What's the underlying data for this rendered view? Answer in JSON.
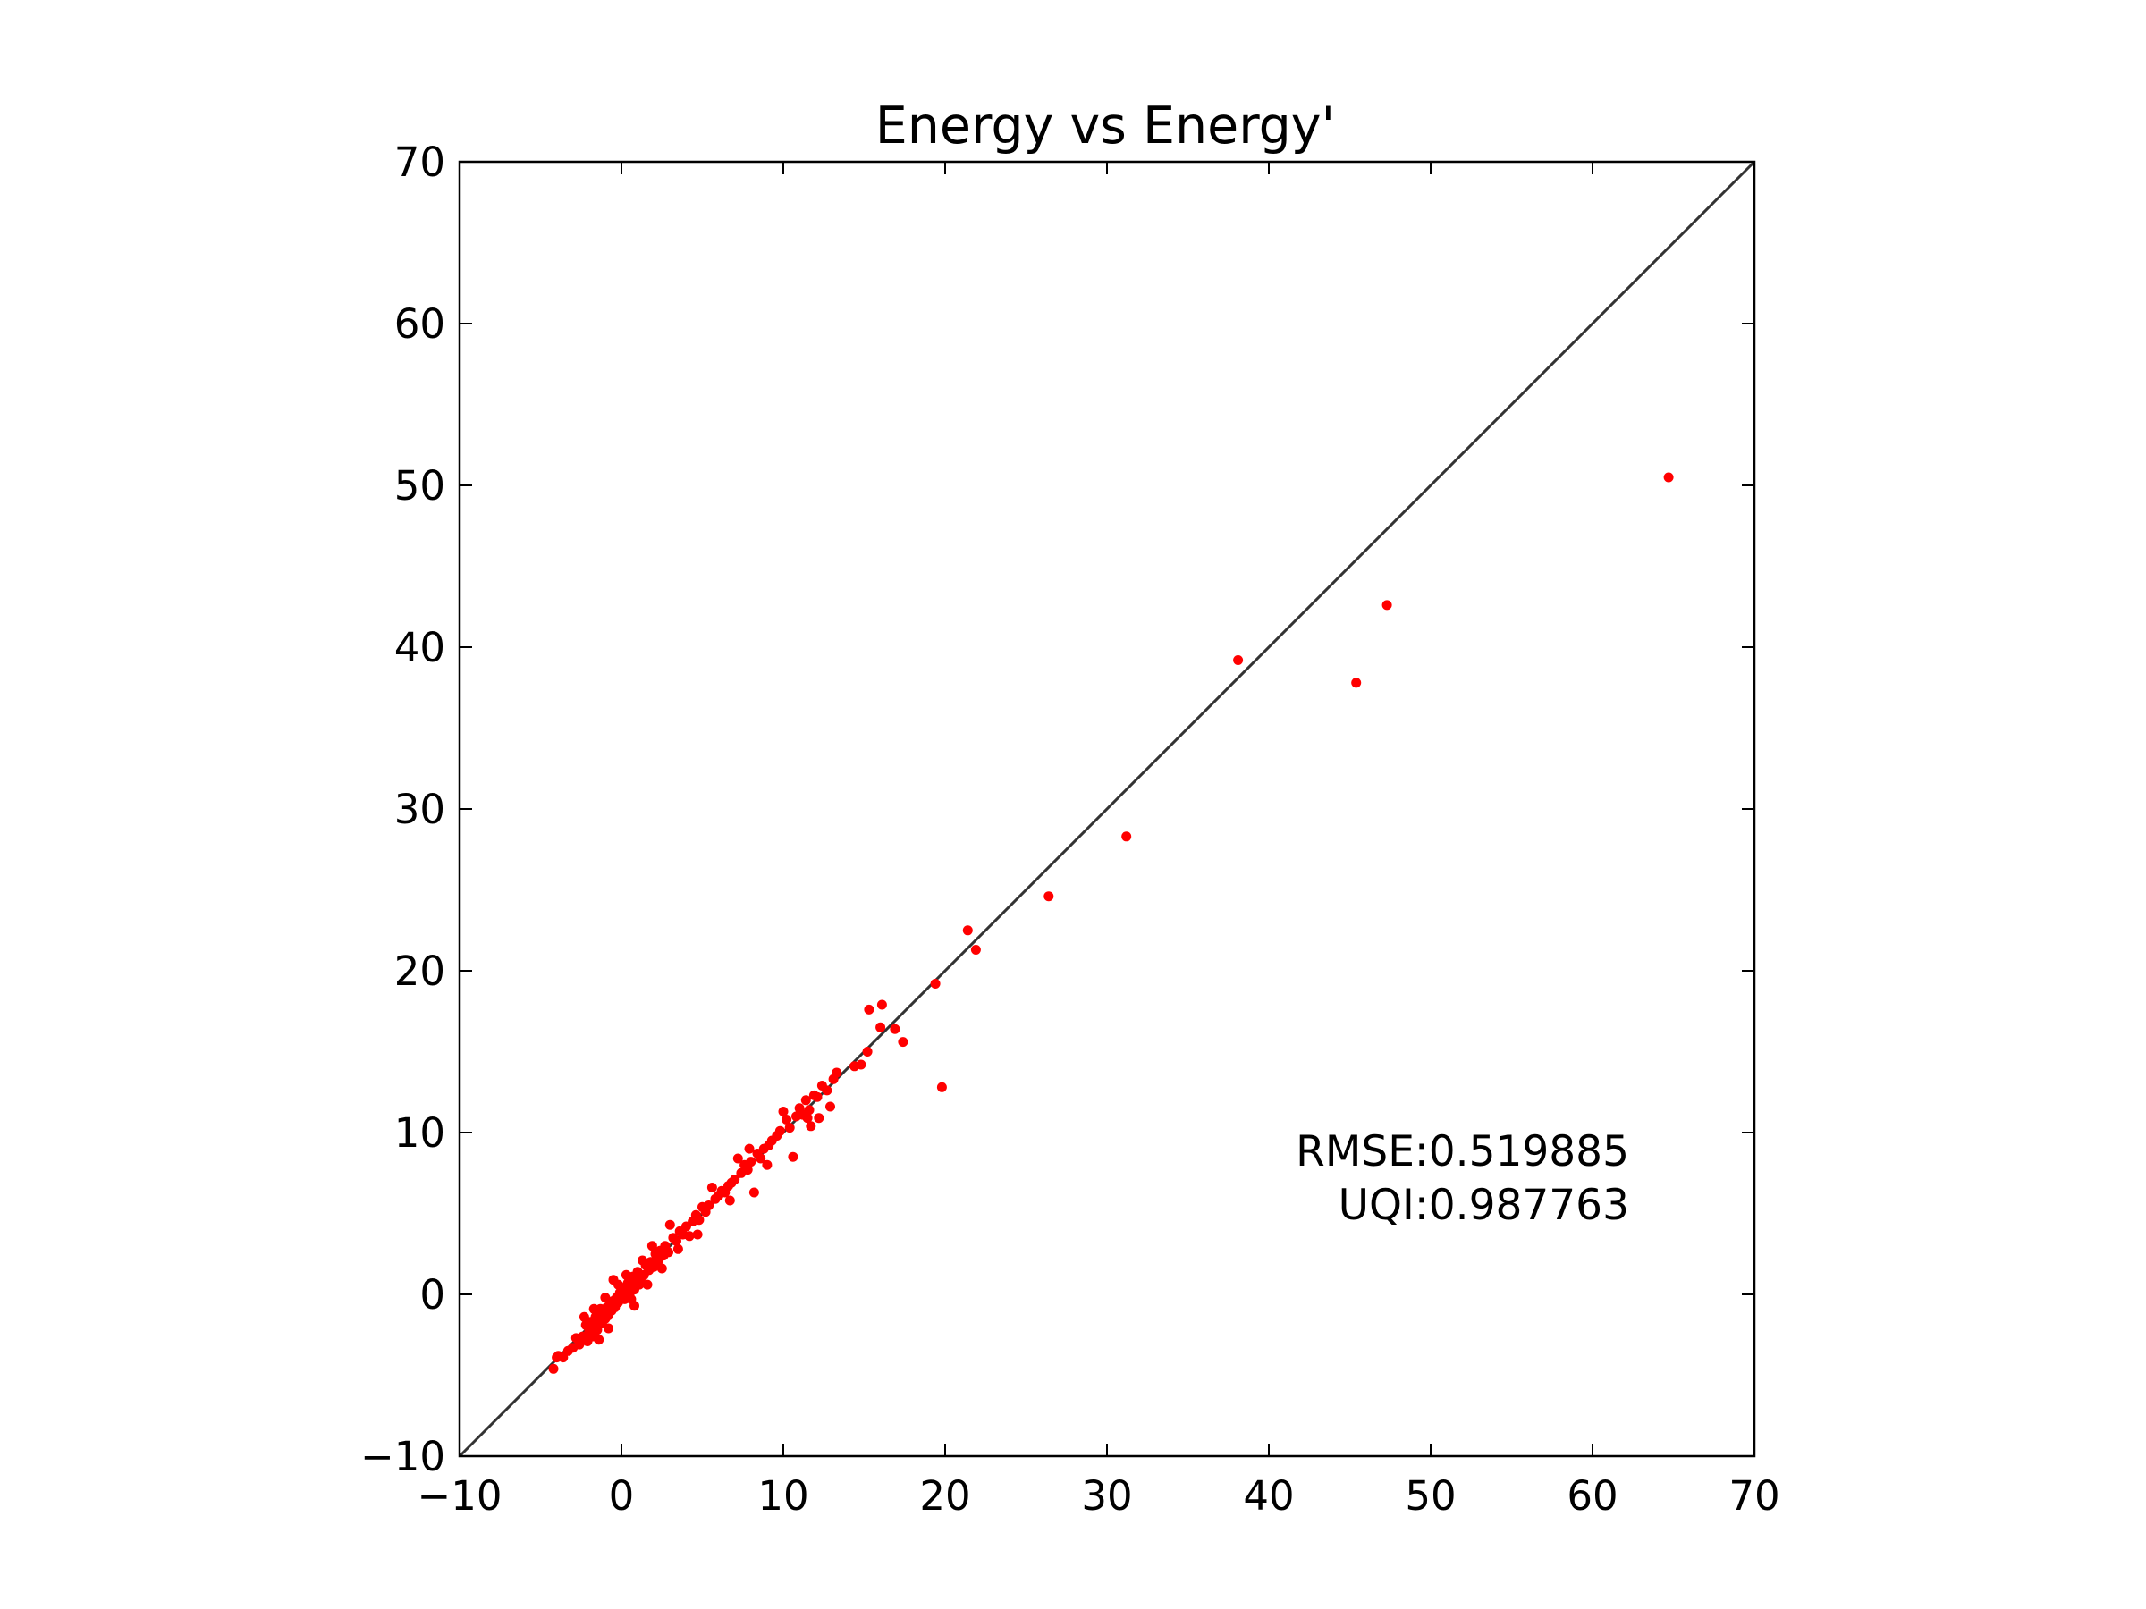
{
  "chart_data": {
    "type": "scatter",
    "title": "Energy vs Energy'",
    "xlabel": "",
    "ylabel": "",
    "xlim": [
      -10,
      70
    ],
    "ylim": [
      -10,
      70
    ],
    "x_ticks": [
      "−10",
      "0",
      "10",
      "20",
      "30",
      "40",
      "50",
      "60",
      "70"
    ],
    "y_ticks": [
      "−10",
      "0",
      "10",
      "20",
      "30",
      "40",
      "50",
      "60",
      "70"
    ],
    "x_tick_values": [
      -10,
      0,
      10,
      20,
      30,
      40,
      50,
      60,
      70
    ],
    "y_tick_values": [
      -10,
      0,
      10,
      20,
      30,
      40,
      50,
      60,
      70
    ],
    "grid": false,
    "reference_line": {
      "from": [
        -10,
        -10
      ],
      "to": [
        70,
        70
      ],
      "color": "#333333"
    },
    "point_color": "#ff0000",
    "annotations": [
      "RMSE:0.519885",
      "UQI:0.987763"
    ],
    "points": [
      [
        64.7,
        50.5
      ],
      [
        47.3,
        42.6
      ],
      [
        45.4,
        37.8
      ],
      [
        38.1,
        39.2
      ],
      [
        31.2,
        28.3
      ],
      [
        26.4,
        24.6
      ],
      [
        21.9,
        21.3
      ],
      [
        21.4,
        22.5
      ],
      [
        19.8,
        12.8
      ],
      [
        19.4,
        19.2
      ],
      [
        17.4,
        15.6
      ],
      [
        16.9,
        16.4
      ],
      [
        16.1,
        17.9
      ],
      [
        16.0,
        16.5
      ],
      [
        15.3,
        17.6
      ],
      [
        15.2,
        15.0
      ],
      [
        14.8,
        14.2
      ],
      [
        14.4,
        14.1
      ],
      [
        13.3,
        13.7
      ],
      [
        13.1,
        13.3
      ],
      [
        12.9,
        11.6
      ],
      [
        12.7,
        12.6
      ],
      [
        12.4,
        12.9
      ],
      [
        12.1,
        12.2
      ],
      [
        11.9,
        12.3
      ],
      [
        11.7,
        10.4
      ],
      [
        11.6,
        11.4
      ],
      [
        11.5,
        10.9
      ],
      [
        11.2,
        11.1
      ],
      [
        11.0,
        11.5
      ],
      [
        10.8,
        11.0
      ],
      [
        10.6,
        8.5
      ],
      [
        10.4,
        10.3
      ],
      [
        10.2,
        10.8
      ],
      [
        10.0,
        11.3
      ],
      [
        9.8,
        10.1
      ],
      [
        9.6,
        9.8
      ],
      [
        9.3,
        9.5
      ],
      [
        9.1,
        9.2
      ],
      [
        8.8,
        9.0
      ],
      [
        8.6,
        8.4
      ],
      [
        8.4,
        8.7
      ],
      [
        8.2,
        6.3
      ],
      [
        8.0,
        8.2
      ],
      [
        7.8,
        7.7
      ],
      [
        7.6,
        8.0
      ],
      [
        7.4,
        7.5
      ],
      [
        7.2,
        8.4
      ],
      [
        7.0,
        7.1
      ],
      [
        6.8,
        6.9
      ],
      [
        6.6,
        6.7
      ],
      [
        6.4,
        6.3
      ],
      [
        6.2,
        6.4
      ],
      [
        6.0,
        6.1
      ],
      [
        5.8,
        5.9
      ],
      [
        5.6,
        6.6
      ],
      [
        5.4,
        5.5
      ],
      [
        5.2,
        5.1
      ],
      [
        5.0,
        5.4
      ],
      [
        4.8,
        4.6
      ],
      [
        4.6,
        4.9
      ],
      [
        4.4,
        4.5
      ],
      [
        4.2,
        3.6
      ],
      [
        4.0,
        4.2
      ],
      [
        3.8,
        3.7
      ],
      [
        3.6,
        3.9
      ],
      [
        3.4,
        3.3
      ],
      [
        3.2,
        3.5
      ],
      [
        3.0,
        4.3
      ],
      [
        2.9,
        2.6
      ],
      [
        2.7,
        3.0
      ],
      [
        2.6,
        2.4
      ],
      [
        2.4,
        2.7
      ],
      [
        2.3,
        2.1
      ],
      [
        2.1,
        2.5
      ],
      [
        2.0,
        1.7
      ],
      [
        1.8,
        2.0
      ],
      [
        1.7,
        1.5
      ],
      [
        1.5,
        1.8
      ],
      [
        1.4,
        1.2
      ],
      [
        1.3,
        2.1
      ],
      [
        1.2,
        1.0
      ],
      [
        1.1,
        0.6
      ],
      [
        1.0,
        1.4
      ],
      [
        0.9,
        0.8
      ],
      [
        0.8,
        0.3
      ],
      [
        0.7,
        1.1
      ],
      [
        0.6,
        0.5
      ],
      [
        0.5,
        0.0
      ],
      [
        0.4,
        0.7
      ],
      [
        0.3,
        0.2
      ],
      [
        0.2,
        -0.3
      ],
      [
        0.1,
        0.4
      ],
      [
        0.0,
        -0.1
      ],
      [
        -0.1,
        0.1
      ],
      [
        -0.2,
        -0.5
      ],
      [
        -0.3,
        -0.2
      ],
      [
        -0.4,
        -0.8
      ],
      [
        -0.5,
        -0.4
      ],
      [
        -0.6,
        -1.0
      ],
      [
        -0.7,
        -0.6
      ],
      [
        -0.8,
        -1.3
      ],
      [
        -0.9,
        -0.8
      ],
      [
        -1.0,
        -1.5
      ],
      [
        -1.1,
        -1.1
      ],
      [
        -1.2,
        -1.8
      ],
      [
        -1.3,
        -0.9
      ],
      [
        -1.4,
        -1.6
      ],
      [
        -1.5,
        -2.2
      ],
      [
        -1.6,
        -1.4
      ],
      [
        -1.7,
        -2.0
      ],
      [
        -1.8,
        -2.6
      ],
      [
        -1.9,
        -1.7
      ],
      [
        -2.0,
        -2.3
      ],
      [
        -2.1,
        -2.9
      ],
      [
        -2.2,
        -1.9
      ],
      [
        -2.4,
        -2.6
      ],
      [
        -2.6,
        -3.1
      ],
      [
        -2.8,
        -2.7
      ],
      [
        -3.0,
        -3.3
      ],
      [
        -3.3,
        -3.5
      ],
      [
        -3.6,
        -3.9
      ],
      [
        -3.9,
        -3.8
      ],
      [
        -4.2,
        -4.6
      ],
      [
        -4.0,
        -3.9
      ],
      [
        -1.4,
        -2.8
      ],
      [
        0.8,
        -0.7
      ],
      [
        -0.5,
        0.9
      ],
      [
        1.6,
        0.6
      ],
      [
        2.5,
        1.6
      ],
      [
        -1.0,
        -0.2
      ],
      [
        0.3,
        1.2
      ],
      [
        -2.3,
        -1.4
      ],
      [
        3.5,
        2.8
      ],
      [
        1.9,
        3.0
      ],
      [
        -0.8,
        -2.1
      ],
      [
        0.6,
        -0.3
      ],
      [
        4.7,
        3.7
      ],
      [
        9.0,
        8.0
      ],
      [
        7.9,
        9.0
      ],
      [
        11.4,
        12.0
      ],
      [
        12.2,
        10.9
      ],
      [
        6.7,
        5.8
      ],
      [
        -1.7,
        -0.9
      ],
      [
        -0.2,
        0.6
      ]
    ]
  }
}
